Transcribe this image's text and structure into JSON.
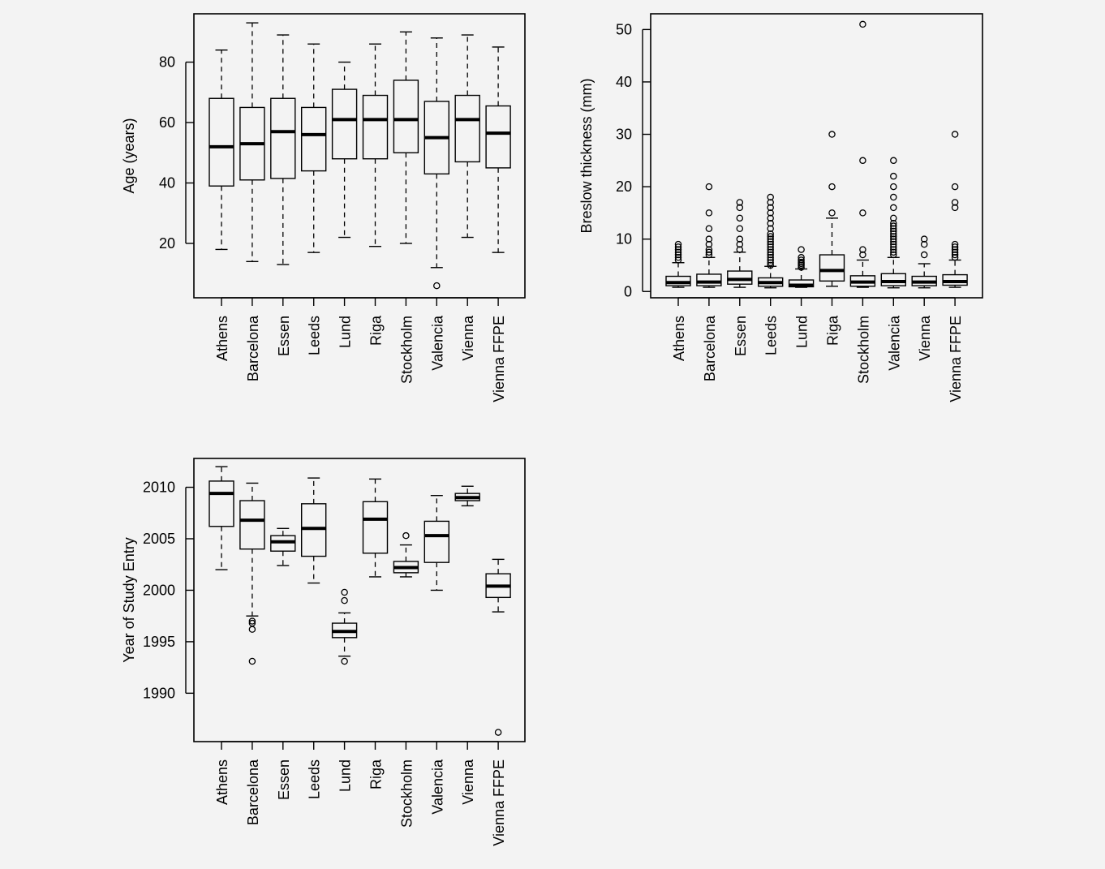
{
  "chart_data": [
    {
      "type": "box",
      "xlabel": "",
      "ylabel": "Age (years)",
      "ylim": [
        2,
        96
      ],
      "yticks": [
        20,
        40,
        60,
        80
      ],
      "categories": [
        "Athens",
        "Barcelona",
        "Essen",
        "Leeds",
        "Lund",
        "Riga",
        "Stockholm",
        "Valencia",
        "Vienna",
        "Vienna FFPE"
      ],
      "boxes": [
        {
          "whisker_low": 18,
          "q1": 39,
          "median": 52,
          "q3": 68,
          "whisker_high": 84,
          "outliers": []
        },
        {
          "whisker_low": 14,
          "q1": 41,
          "median": 53,
          "q3": 65,
          "whisker_high": 93,
          "outliers": []
        },
        {
          "whisker_low": 13,
          "q1": 41.5,
          "median": 57,
          "q3": 68,
          "whisker_high": 89,
          "outliers": []
        },
        {
          "whisker_low": 17,
          "q1": 44,
          "median": 56,
          "q3": 65,
          "whisker_high": 86,
          "outliers": []
        },
        {
          "whisker_low": 22,
          "q1": 48,
          "median": 61,
          "q3": 71,
          "whisker_high": 80,
          "outliers": []
        },
        {
          "whisker_low": 19,
          "q1": 48,
          "median": 61,
          "q3": 69,
          "whisker_high": 86,
          "outliers": []
        },
        {
          "whisker_low": 20,
          "q1": 50,
          "median": 61,
          "q3": 74,
          "whisker_high": 90,
          "outliers": []
        },
        {
          "whisker_low": 12,
          "q1": 43,
          "median": 55,
          "q3": 67,
          "whisker_high": 88,
          "outliers": [
            6
          ]
        },
        {
          "whisker_low": 22,
          "q1": 47,
          "median": 61,
          "q3": 69,
          "whisker_high": 89,
          "outliers": []
        },
        {
          "whisker_low": 17,
          "q1": 45,
          "median": 56.5,
          "q3": 65.5,
          "whisker_high": 85,
          "outliers": []
        }
      ]
    },
    {
      "type": "box",
      "xlabel": "",
      "ylabel": "Breslow thickness (mm)",
      "ylim": [
        -1.2,
        53
      ],
      "yticks": [
        0,
        10,
        20,
        30,
        40,
        50
      ],
      "categories": [
        "Athens",
        "Barcelona",
        "Essen",
        "Leeds",
        "Lund",
        "Riga",
        "Stockholm",
        "Valencia",
        "Vienna",
        "Vienna FFPE"
      ],
      "boxes": [
        {
          "whisker_low": 0.8,
          "q1": 1.1,
          "median": 1.7,
          "q3": 2.9,
          "whisker_high": 5.5,
          "outliers": [
            6,
            6.5,
            7,
            7.5,
            8,
            8.5,
            9
          ]
        },
        {
          "whisker_low": 0.8,
          "q1": 1.1,
          "median": 1.8,
          "q3": 3.3,
          "whisker_high": 6.5,
          "outliers": [
            7,
            7.5,
            8,
            9,
            10,
            12,
            15,
            20
          ]
        },
        {
          "whisker_low": 0.8,
          "q1": 1.4,
          "median": 2.3,
          "q3": 3.9,
          "whisker_high": 7.5,
          "outliers": [
            8,
            9,
            10,
            12,
            14,
            16,
            17
          ]
        },
        {
          "whisker_low": 0.7,
          "q1": 1.0,
          "median": 1.7,
          "q3": 2.6,
          "whisker_high": 4.8,
          "outliers": [
            5,
            5.5,
            6,
            6.5,
            7,
            7.5,
            8,
            8.5,
            9,
            9.5,
            10,
            10.5,
            11,
            12,
            13,
            14,
            15,
            16,
            17,
            18
          ]
        },
        {
          "whisker_low": 0.8,
          "q1": 0.9,
          "median": 1.2,
          "q3": 2.2,
          "whisker_high": 4.3,
          "outliers": [
            4.6,
            5,
            5.3,
            5.6,
            6,
            6.5,
            8
          ]
        },
        {
          "whisker_low": 1.0,
          "q1": 2.0,
          "median": 4.0,
          "q3": 7.0,
          "whisker_high": 14,
          "outliers": [
            15,
            20,
            30
          ]
        },
        {
          "whisker_low": 0.8,
          "q1": 1.0,
          "median": 1.8,
          "q3": 3.0,
          "whisker_high": 6.0,
          "outliers": [
            7,
            8,
            15,
            25,
            51
          ]
        },
        {
          "whisker_low": 0.7,
          "q1": 1.1,
          "median": 1.9,
          "q3": 3.4,
          "whisker_high": 6.5,
          "outliers": [
            7,
            7.5,
            8,
            8.5,
            9,
            9.5,
            10,
            10.5,
            11,
            11.5,
            12,
            12.5,
            13,
            14,
            16,
            18,
            20,
            22,
            25
          ]
        },
        {
          "whisker_low": 0.7,
          "q1": 1.1,
          "median": 1.8,
          "q3": 2.9,
          "whisker_high": 5.3,
          "outliers": [
            7,
            9,
            10
          ]
        },
        {
          "whisker_low": 0.8,
          "q1": 1.2,
          "median": 1.9,
          "q3": 3.2,
          "whisker_high": 6.0,
          "outliers": [
            6.5,
            7,
            7.5,
            8,
            8.5,
            9,
            16,
            17,
            20,
            30
          ]
        }
      ]
    },
    {
      "type": "box",
      "xlabel": "",
      "ylabel": "Year of Study Entry",
      "ylim": [
        1985.3,
        2012.8
      ],
      "yticks": [
        1990,
        1995,
        2000,
        2005,
        2010
      ],
      "categories": [
        "Athens",
        "Barcelona",
        "Essen",
        "Leeds",
        "Lund",
        "Riga",
        "Stockholm",
        "Valencia",
        "Vienna",
        "Vienna FFPE"
      ],
      "boxes": [
        {
          "whisker_low": 2002,
          "q1": 2006.2,
          "median": 2009.4,
          "q3": 2010.6,
          "whisker_high": 2012,
          "outliers": []
        },
        {
          "whisker_low": 1997.5,
          "q1": 2004.0,
          "median": 2006.8,
          "q3": 2008.7,
          "whisker_high": 2010.4,
          "outliers": [
            1993.1,
            1996.2,
            1996.8,
            1997.0
          ]
        },
        {
          "whisker_low": 2002.4,
          "q1": 2003.8,
          "median": 2004.7,
          "q3": 2005.3,
          "whisker_high": 2006,
          "outliers": []
        },
        {
          "whisker_low": 2000.7,
          "q1": 2003.3,
          "median": 2006.0,
          "q3": 2008.4,
          "whisker_high": 2010.9,
          "outliers": []
        },
        {
          "whisker_low": 1993.6,
          "q1": 1995.4,
          "median": 1996.0,
          "q3": 1996.8,
          "whisker_high": 1997.8,
          "outliers": [
            1993.1,
            1999.0,
            1999.8
          ]
        },
        {
          "whisker_low": 2001.3,
          "q1": 2003.6,
          "median": 2006.9,
          "q3": 2008.6,
          "whisker_high": 2010.8,
          "outliers": []
        },
        {
          "whisker_low": 2001.3,
          "q1": 2001.7,
          "median": 2002.2,
          "q3": 2002.8,
          "whisker_high": 2004.4,
          "outliers": [
            2005.3
          ]
        },
        {
          "whisker_low": 2000.0,
          "q1": 2002.7,
          "median": 2005.3,
          "q3": 2006.7,
          "whisker_high": 2009.2,
          "outliers": []
        },
        {
          "whisker_low": 2008.2,
          "q1": 2008.7,
          "median": 2009.0,
          "q3": 2009.4,
          "whisker_high": 2010.1,
          "outliers": []
        },
        {
          "whisker_low": 1997.9,
          "q1": 1999.3,
          "median": 2000.4,
          "q3": 2001.6,
          "whisker_high": 2003.0,
          "outliers": [
            1986.2
          ]
        }
      ]
    }
  ]
}
